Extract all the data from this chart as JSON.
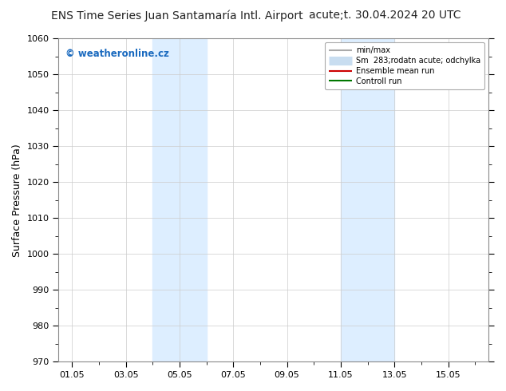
{
  "title_left": "ENS Time Series Juan Santamaría Intl. Airport",
  "title_right": "acute;t. 30.04.2024 20 UTC",
  "ylabel": "Surface Pressure (hPa)",
  "ylim": [
    970,
    1060
  ],
  "yticks": [
    970,
    980,
    990,
    1000,
    1010,
    1020,
    1030,
    1040,
    1050,
    1060
  ],
  "xtick_labels": [
    "01.05",
    "03.05",
    "05.05",
    "07.05",
    "09.05",
    "11.05",
    "13.05",
    "15.05"
  ],
  "xtick_positions": [
    0,
    2,
    4,
    6,
    8,
    10,
    12,
    14
  ],
  "xlim": [
    -0.5,
    15.5
  ],
  "shaded_regions": [
    {
      "start": 3.0,
      "end": 5.0,
      "color": "#ddeeff"
    },
    {
      "start": 10.0,
      "end": 12.0,
      "color": "#ddeeff"
    }
  ],
  "watermark": "© weatheronline.cz",
  "watermark_color": "#1a6abf",
  "legend_entries": [
    {
      "label": "min/max",
      "color": "#aaaaaa",
      "lw": 1.5
    },
    {
      "label": "Sm  283;rodatn acute; odchylka",
      "color": "#c8ddf0",
      "lw": 8
    },
    {
      "label": "Ensemble mean run",
      "color": "#cc0000",
      "lw": 1.5
    },
    {
      "label": "Controll run",
      "color": "#007700",
      "lw": 1.5
    }
  ],
  "bg_color": "#ffffff",
  "plot_bg_color": "#ffffff",
  "grid_color": "#cccccc",
  "title_fontsize": 10,
  "tick_fontsize": 8,
  "ylabel_fontsize": 9
}
